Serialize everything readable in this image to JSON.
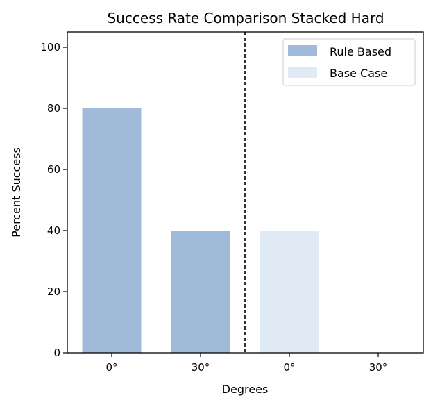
{
  "chart_data": {
    "type": "bar",
    "title": "Success Rate Comparison Stacked Hard",
    "xlabel": "Degrees",
    "ylabel": "Percent Success",
    "ylim": [
      0,
      105
    ],
    "yticks": [
      "0",
      "20",
      "40",
      "60",
      "80",
      "100"
    ],
    "categories": [
      "0°",
      "30°",
      "0°",
      "30°"
    ],
    "series": [
      {
        "name": "Rule Based",
        "color": "#9fbbd9",
        "values": [
          80,
          40,
          null,
          null
        ]
      },
      {
        "name": "Base Case",
        "color": "#dfeaf4",
        "values": [
          null,
          null,
          40,
          0
        ]
      }
    ],
    "divider": {
      "style": "dashed",
      "between_categories": [
        1,
        2
      ]
    },
    "legend": "top-right",
    "grid": false
  }
}
